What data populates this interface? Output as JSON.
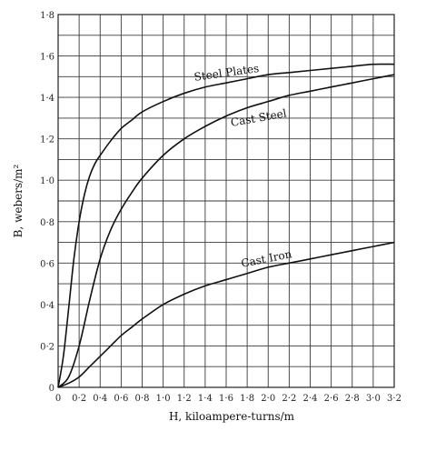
{
  "chart_data": {
    "type": "line",
    "xlabel": "H, kiloampere-turns/m",
    "ylabel": "B, webers/m²",
    "xlim": [
      0,
      3.2
    ],
    "ylim": [
      0,
      1.8
    ],
    "grid": true,
    "x_ticks": [
      "0",
      "0·2",
      "0·4",
      "0·6",
      "0·8",
      "1·0",
      "1·2",
      "1·4",
      "1·6",
      "1·8",
      "2·0",
      "2·2",
      "2·4",
      "2·6",
      "2·8",
      "3·0",
      "3·2"
    ],
    "y_ticks": [
      "0",
      "0·2",
      "0·4",
      "0·6",
      "0·8",
      "1·0",
      "1·2",
      "1·4",
      "1·6",
      "1·8"
    ],
    "series": [
      {
        "name": "Steel Plates",
        "x": [
          0,
          0.05,
          0.1,
          0.15,
          0.2,
          0.25,
          0.3,
          0.35,
          0.4,
          0.5,
          0.6,
          0.7,
          0.8,
          1.0,
          1.2,
          1.4,
          1.6,
          1.8,
          2.0,
          2.2,
          2.4,
          2.6,
          2.8,
          3.0,
          3.2
        ],
        "y": [
          0,
          0.15,
          0.38,
          0.62,
          0.8,
          0.93,
          1.02,
          1.08,
          1.12,
          1.19,
          1.25,
          1.29,
          1.33,
          1.38,
          1.42,
          1.45,
          1.47,
          1.49,
          1.51,
          1.52,
          1.53,
          1.54,
          1.55,
          1.56,
          1.56
        ]
      },
      {
        "name": "Cast Steel",
        "x": [
          0,
          0.1,
          0.2,
          0.3,
          0.4,
          0.5,
          0.6,
          0.7,
          0.8,
          1.0,
          1.2,
          1.4,
          1.6,
          1.8,
          2.0,
          2.2,
          2.4,
          2.6,
          2.8,
          3.0,
          3.2
        ],
        "y": [
          0,
          0.05,
          0.2,
          0.42,
          0.62,
          0.76,
          0.86,
          0.94,
          1.01,
          1.12,
          1.2,
          1.26,
          1.31,
          1.35,
          1.38,
          1.41,
          1.43,
          1.45,
          1.47,
          1.49,
          1.51
        ]
      },
      {
        "name": "Cast Iron",
        "x": [
          0,
          0.1,
          0.2,
          0.3,
          0.4,
          0.5,
          0.6,
          0.7,
          0.8,
          1.0,
          1.2,
          1.4,
          1.6,
          1.8,
          2.0,
          2.2,
          2.4,
          2.6,
          2.8,
          3.0,
          3.2
        ],
        "y": [
          0,
          0.02,
          0.05,
          0.1,
          0.15,
          0.2,
          0.25,
          0.29,
          0.33,
          0.4,
          0.45,
          0.49,
          0.52,
          0.55,
          0.58,
          0.6,
          0.62,
          0.64,
          0.66,
          0.68,
          0.7
        ]
      }
    ]
  }
}
